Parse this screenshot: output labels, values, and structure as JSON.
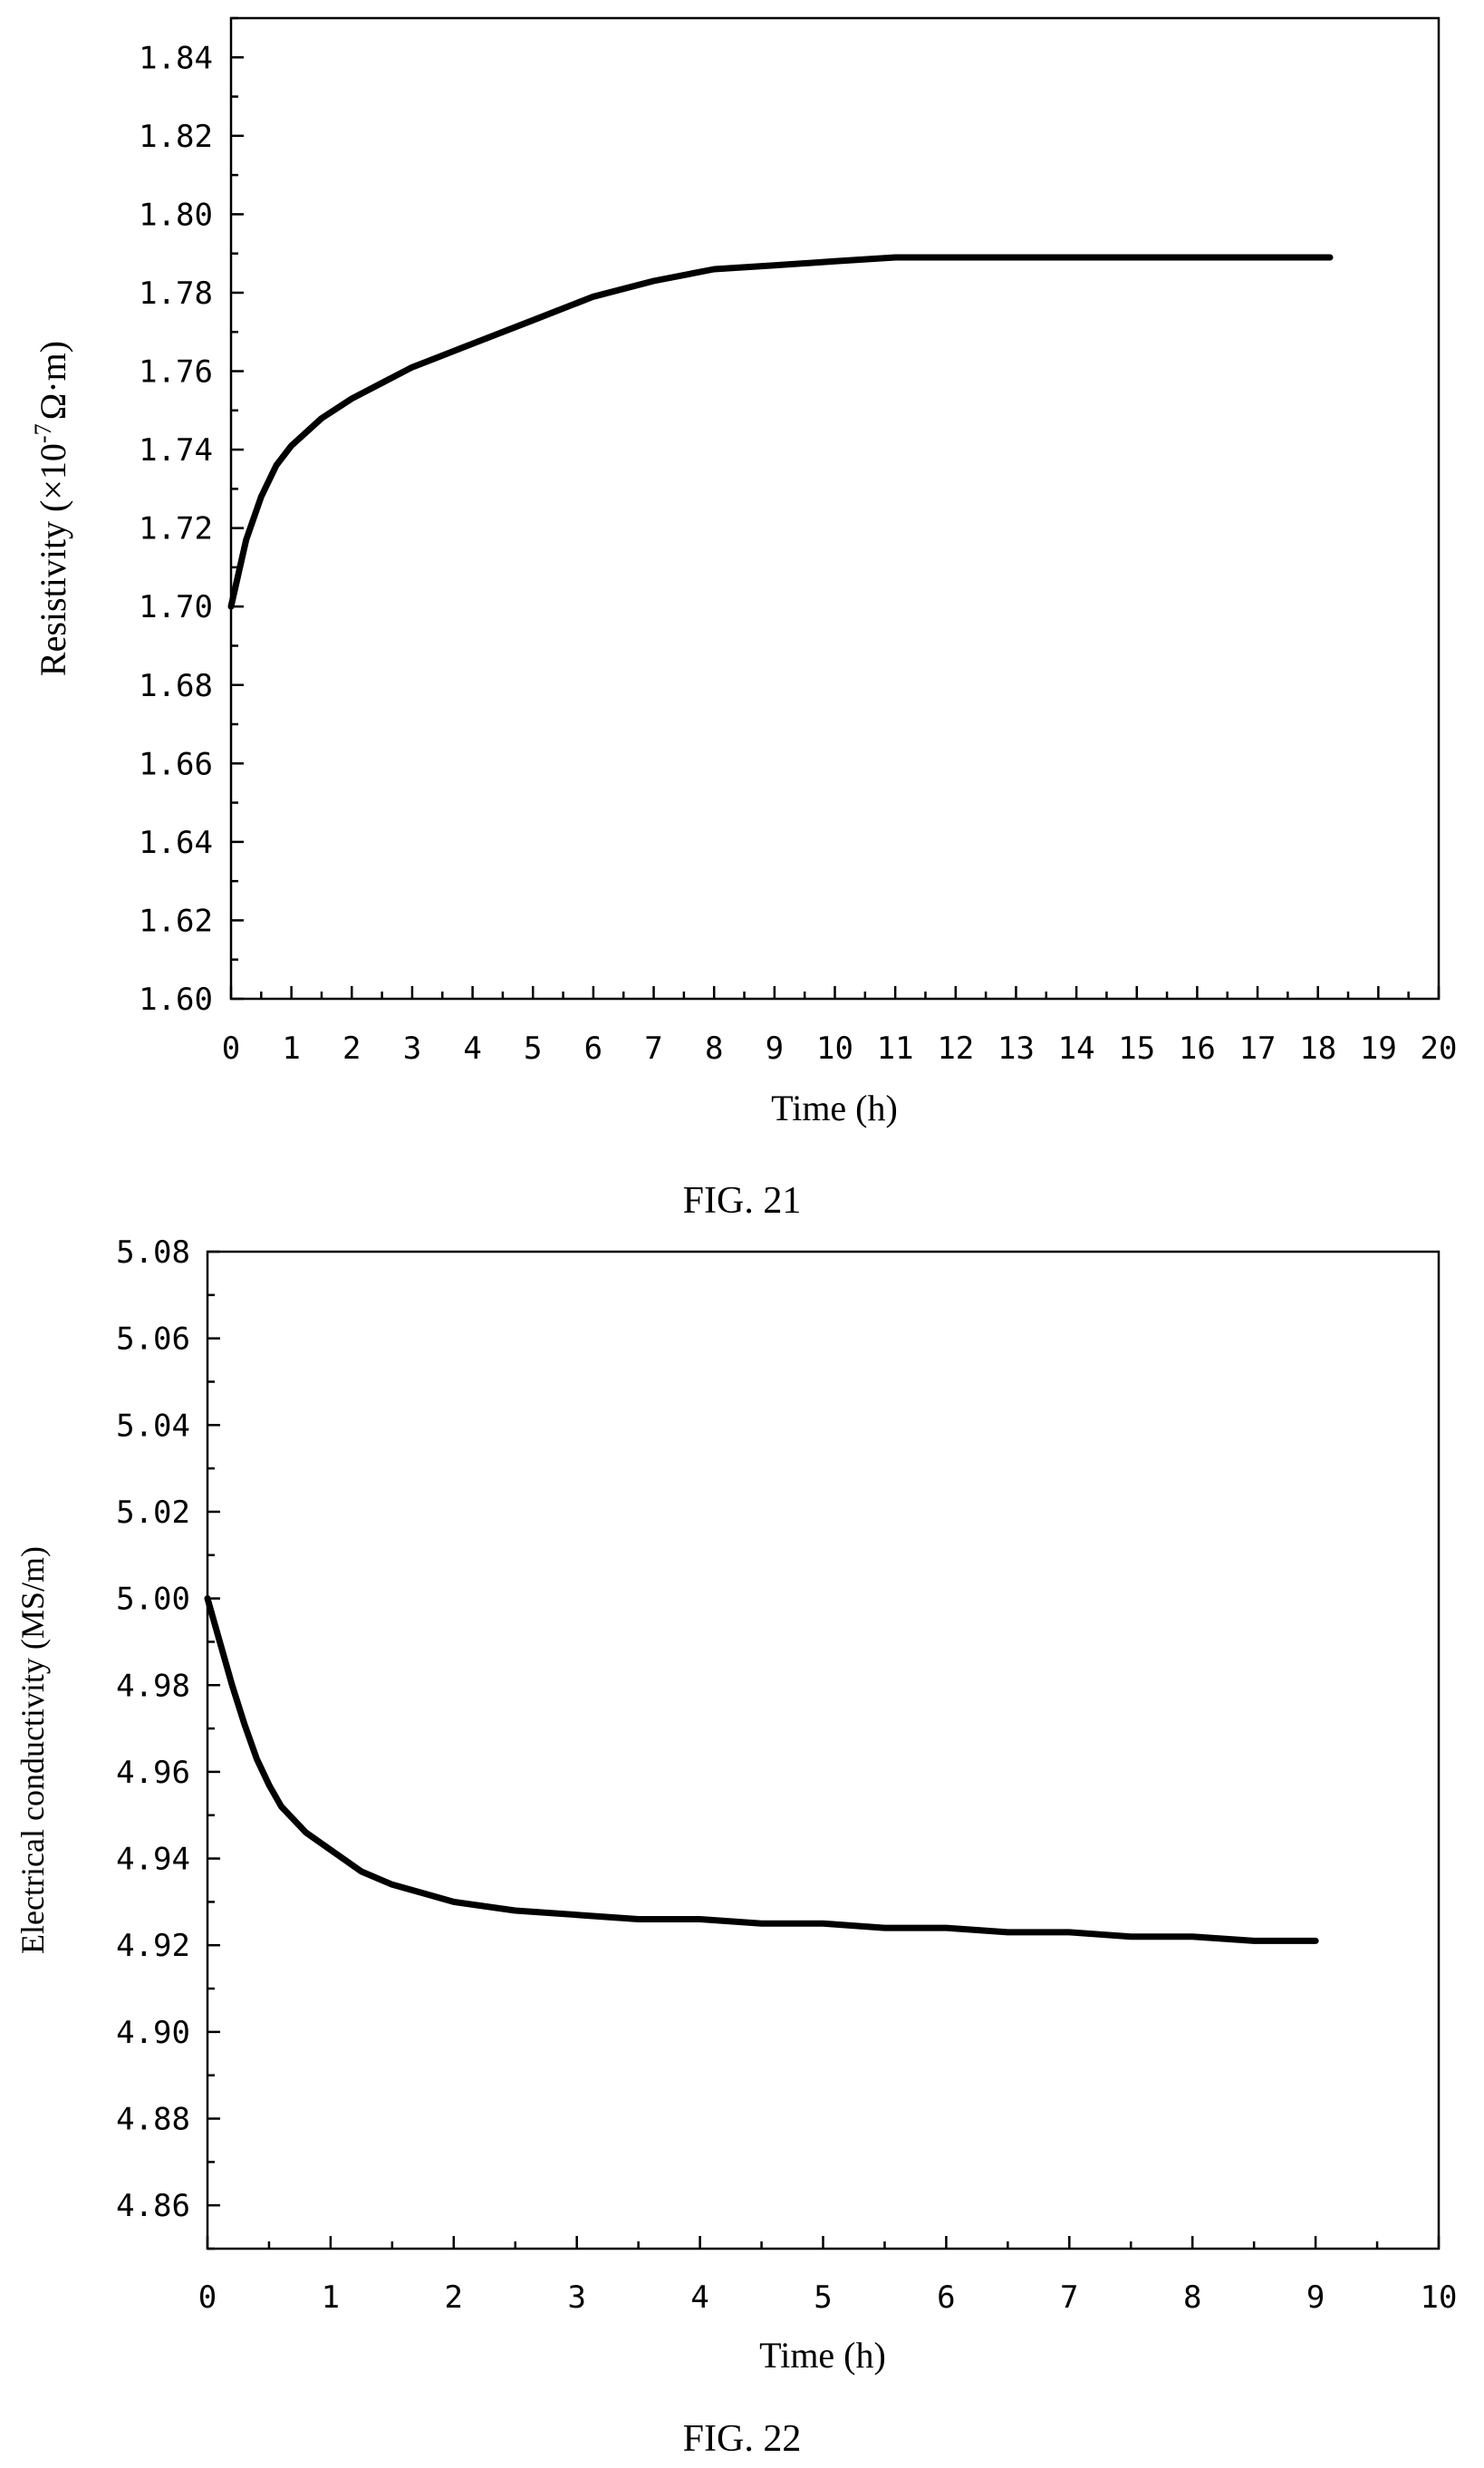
{
  "chart_data": [
    {
      "type": "line",
      "caption": "FIG. 21",
      "xlabel": "Time (h)",
      "ylabel": "Resistivity (×10",
      "ylabel_exponent": "-7",
      "ylabel_unit": "Ω·m)",
      "xlim": [
        0,
        20
      ],
      "ylim": [
        1.6,
        1.85
      ],
      "x_ticks": [
        "0",
        "1",
        "2",
        "3",
        "4",
        "5",
        "6",
        "7",
        "8",
        "9",
        "10",
        "11",
        "12",
        "13",
        "14",
        "15",
        "16",
        "17",
        "18",
        "19",
        "20"
      ],
      "y_ticks": [
        "1.60",
        "1.62",
        "1.64",
        "1.66",
        "1.68",
        "1.70",
        "1.72",
        "1.74",
        "1.76",
        "1.78",
        "1.80",
        "1.82",
        "1.84"
      ],
      "grid": false,
      "series": [
        {
          "x": [
            0,
            0.25,
            0.5,
            0.75,
            1,
            1.5,
            2,
            2.5,
            3,
            3.5,
            4,
            5,
            6,
            7,
            8,
            9,
            10,
            11,
            12,
            13,
            14,
            15,
            16,
            17,
            18.2
          ],
          "y": [
            1.7,
            1.717,
            1.728,
            1.736,
            1.741,
            1.748,
            1.753,
            1.757,
            1.761,
            1.764,
            1.767,
            1.773,
            1.779,
            1.783,
            1.786,
            1.787,
            1.788,
            1.789,
            1.789,
            1.789,
            1.789,
            1.789,
            1.789,
            1.789,
            1.789
          ]
        }
      ]
    },
    {
      "type": "line",
      "caption": "FIG. 22",
      "xlabel": "Time (h)",
      "ylabel": "Electrical conductivity (MS/m)",
      "xlim": [
        0,
        10
      ],
      "ylim": [
        4.85,
        5.08
      ],
      "x_ticks": [
        "0",
        "1",
        "2",
        "3",
        "4",
        "5",
        "6",
        "7",
        "8",
        "9",
        "10"
      ],
      "y_ticks": [
        "4.86",
        "4.88",
        "4.90",
        "4.92",
        "4.94",
        "4.96",
        "4.98",
        "5.00",
        "5.02",
        "5.04",
        "5.06",
        "5.08"
      ],
      "grid": false,
      "series": [
        {
          "x": [
            0,
            0.1,
            0.2,
            0.3,
            0.4,
            0.5,
            0.6,
            0.8,
            1.0,
            1.25,
            1.5,
            1.75,
            2,
            2.5,
            3,
            3.5,
            4,
            4.5,
            5,
            5.5,
            6,
            6.5,
            7,
            7.5,
            8,
            8.5,
            9
          ],
          "y": [
            5.0,
            4.99,
            4.98,
            4.971,
            4.963,
            4.957,
            4.952,
            4.946,
            4.942,
            4.937,
            4.934,
            4.932,
            4.93,
            4.928,
            4.927,
            4.926,
            4.926,
            4.925,
            4.925,
            4.924,
            4.924,
            4.923,
            4.923,
            4.922,
            4.922,
            4.921,
            4.921
          ]
        }
      ]
    }
  ]
}
